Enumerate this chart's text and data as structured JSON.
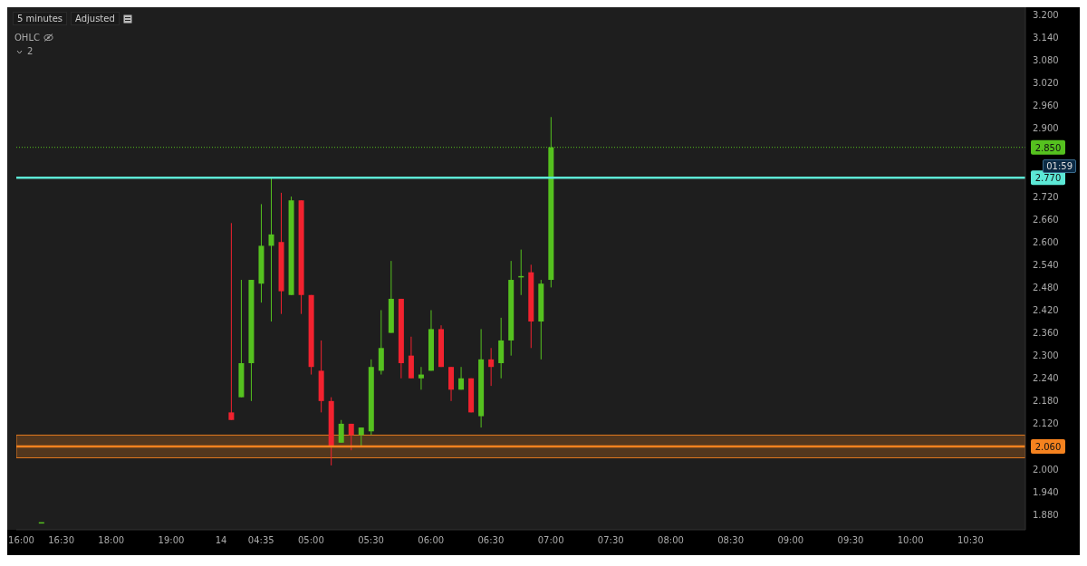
{
  "chart_data": {
    "type": "candlestick",
    "categories": [
      "16:00",
      null,
      null,
      null,
      "16:30",
      null,
      null,
      null,
      null,
      "18:00",
      null,
      null,
      null,
      null,
      null,
      "19:00",
      null,
      null,
      null,
      null,
      "14",
      null,
      null,
      null,
      "04:35",
      null,
      null,
      null,
      null,
      "05:00",
      null,
      null,
      null,
      null,
      null,
      "05:30",
      null,
      null,
      null,
      null,
      null,
      "06:00",
      null,
      null,
      null,
      null,
      null,
      "06:30",
      null,
      null,
      null,
      null,
      null,
      "07:00",
      null,
      null,
      null,
      null,
      null,
      "07:30",
      null,
      null,
      null,
      null,
      null,
      "08:00",
      null,
      null,
      null,
      null,
      null,
      "08:30",
      null,
      null,
      null,
      null,
      null,
      "09:00",
      null,
      null,
      null,
      null,
      null,
      "09:30",
      null,
      null,
      null,
      null,
      null,
      "10:00",
      null,
      null,
      null,
      null,
      null,
      "10:30",
      null,
      null,
      null,
      null,
      null
    ],
    "ohlc": [
      null,
      null,
      [
        1.86,
        1.86,
        1.86,
        1.86
      ],
      null,
      null,
      null,
      null,
      null,
      null,
      null,
      null,
      null,
      null,
      null,
      null,
      null,
      null,
      null,
      null,
      null,
      null,
      [
        2.15,
        2.65,
        2.13,
        2.13
      ],
      [
        2.19,
        2.5,
        2.19,
        2.28
      ],
      [
        2.28,
        2.5,
        2.18,
        2.5
      ],
      [
        2.49,
        2.7,
        2.44,
        2.59
      ],
      [
        2.59,
        2.77,
        2.39,
        2.62
      ],
      [
        2.6,
        2.73,
        2.41,
        2.47
      ],
      [
        2.46,
        2.72,
        2.46,
        2.71
      ],
      [
        2.71,
        2.71,
        2.41,
        2.46
      ],
      [
        2.46,
        2.46,
        2.25,
        2.27
      ],
      [
        2.26,
        2.34,
        2.15,
        2.18
      ],
      [
        2.18,
        2.19,
        2.01,
        2.06
      ],
      [
        2.07,
        2.13,
        2.07,
        2.12
      ],
      [
        2.12,
        2.12,
        2.05,
        2.09
      ],
      [
        2.09,
        2.11,
        2.06,
        2.11
      ],
      [
        2.1,
        2.29,
        2.09,
        2.27
      ],
      [
        2.26,
        2.42,
        2.25,
        2.32
      ],
      [
        2.36,
        2.55,
        2.36,
        2.45
      ],
      [
        2.45,
        2.45,
        2.24,
        2.28
      ],
      [
        2.3,
        2.35,
        2.24,
        2.24
      ],
      [
        2.24,
        2.27,
        2.21,
        2.25
      ],
      [
        2.26,
        2.42,
        2.26,
        2.37
      ],
      [
        2.37,
        2.38,
        2.27,
        2.27
      ],
      [
        2.27,
        2.27,
        2.18,
        2.21
      ],
      [
        2.21,
        2.27,
        2.21,
        2.24
      ],
      [
        2.24,
        2.24,
        2.15,
        2.15
      ],
      [
        2.14,
        2.37,
        2.11,
        2.29
      ],
      [
        2.29,
        2.32,
        2.22,
        2.27
      ],
      [
        2.28,
        2.4,
        2.24,
        2.34
      ],
      [
        2.34,
        2.55,
        2.3,
        2.5
      ],
      [
        2.51,
        2.58,
        2.46,
        2.51
      ],
      [
        2.52,
        2.54,
        2.32,
        2.39
      ],
      [
        2.39,
        2.5,
        2.29,
        2.49
      ],
      [
        2.5,
        2.93,
        2.48,
        2.85
      ],
      null,
      null,
      null,
      null,
      null,
      null,
      null,
      null,
      null,
      null,
      null,
      null,
      null,
      null,
      null,
      null,
      null,
      null,
      null,
      null,
      null,
      null,
      null,
      null,
      null,
      null,
      null,
      null,
      null,
      null,
      null,
      null,
      null,
      null,
      null,
      null,
      null,
      null,
      null,
      null,
      null,
      null,
      null,
      null,
      null,
      null,
      null
    ],
    "colors": [
      null,
      null,
      "#55c11f",
      null,
      null,
      null,
      null,
      null,
      null,
      null,
      null,
      null,
      null,
      null,
      null,
      null,
      null,
      null,
      null,
      null,
      null,
      "#f2222f",
      "#55c11f",
      "#55c11f",
      "#55c11f",
      "#55c11f",
      "#f2222f",
      "#55c11f",
      "#f2222f",
      "#f2222f",
      "#f2222f",
      "#f2222f",
      "#55c11f",
      "#f2222f",
      "#55c11f",
      "#55c11f",
      "#55c11f",
      "#55c11f",
      "#f2222f",
      "#f2222f",
      "#55c11f",
      "#55c11f",
      "#f2222f",
      "#f2222f",
      "#55c11f",
      "#f2222f",
      "#55c11f",
      "#f2222f",
      "#55c11f",
      "#55c11f",
      "#55c11f",
      "#f2222f",
      "#55c11f",
      "#55c11f",
      null,
      null,
      null,
      null,
      null,
      null,
      null,
      null,
      null,
      null,
      null,
      null,
      null,
      null,
      null,
      null,
      null,
      null,
      null,
      null,
      null,
      null,
      null,
      null,
      null,
      null,
      null,
      null,
      null,
      null,
      null,
      null,
      null,
      null,
      null,
      null,
      null,
      null,
      null,
      null,
      null,
      null,
      null,
      null,
      null,
      null,
      null
    ],
    "ylim": [
      1.84,
      3.22
    ],
    "yticks": [
      {
        "value": 1.88,
        "label": "1.880"
      },
      {
        "value": 1.94,
        "label": "1.940"
      },
      {
        "value": 2.0,
        "label": "2.000"
      },
      {
        "value": 2.12,
        "label": "2.120"
      },
      {
        "value": 2.18,
        "label": "2.180"
      },
      {
        "value": 2.24,
        "label": "2.240"
      },
      {
        "value": 2.3,
        "label": "2.300"
      },
      {
        "value": 2.36,
        "label": "2.360"
      },
      {
        "value": 2.42,
        "label": "2.420"
      },
      {
        "value": 2.48,
        "label": "2.480"
      },
      {
        "value": 2.54,
        "label": "2.540"
      },
      {
        "value": 2.6,
        "label": "2.600"
      },
      {
        "value": 2.66,
        "label": "2.660"
      },
      {
        "value": 2.72,
        "label": "2.720"
      },
      {
        "value": 2.9,
        "label": "2.900"
      },
      {
        "value": 2.96,
        "label": "2.960"
      },
      {
        "value": 3.02,
        "label": "3.020"
      },
      {
        "value": 3.08,
        "label": "3.080"
      },
      {
        "value": 3.14,
        "label": "3.140"
      },
      {
        "value": 3.2,
        "label": "3.200"
      }
    ],
    "ref_lines": [
      {
        "axis": "y",
        "value": 2.85,
        "label": "2.850",
        "color": "#55c11f",
        "line_style": "dotted"
      },
      {
        "axis": "y",
        "value": 2.77,
        "label": "2.770",
        "color": "#5ce8d6",
        "line_style": "solid"
      },
      {
        "axis": "y",
        "value": 2.06,
        "label": "2.060",
        "color": "#f5821f",
        "line_style": "solid"
      }
    ],
    "bands": [
      {
        "axis": "y",
        "from": 2.03,
        "to": 2.09,
        "color": "#f5821f"
      }
    ],
    "annotations": [
      "5 minutes",
      "Adjusted",
      "OHLC",
      "2",
      "01:59"
    ],
    "grid": false,
    "legend": false
  }
}
